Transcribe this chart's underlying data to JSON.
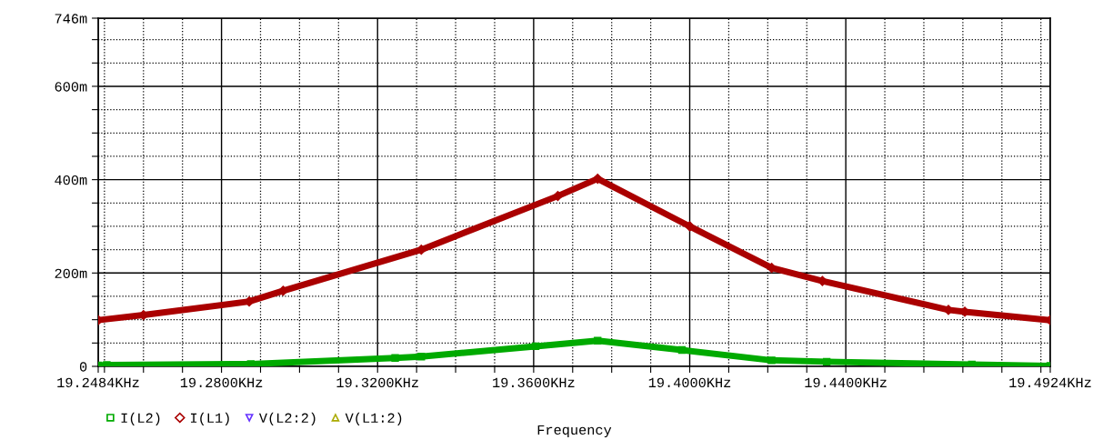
{
  "chart_data": {
    "type": "line",
    "xlabel": "Frequency",
    "legend": "bottom",
    "grid": true,
    "line_style": "solid",
    "xlim": [
      19.2484,
      19.4924
    ],
    "ylim": [
      0,
      746
    ],
    "xticks": [
      {
        "value": 19.2484,
        "label": "19.2484KHz"
      },
      {
        "value": 19.25,
        "label": null
      },
      {
        "value": 19.26,
        "label": null
      },
      {
        "value": 19.27,
        "label": null
      },
      {
        "value": 19.28,
        "label": "19.2800KHz"
      },
      {
        "value": 19.29,
        "label": null
      },
      {
        "value": 19.3,
        "label": null
      },
      {
        "value": 19.31,
        "label": null
      },
      {
        "value": 19.32,
        "label": "19.3200KHz"
      },
      {
        "value": 19.33,
        "label": null
      },
      {
        "value": 19.34,
        "label": null
      },
      {
        "value": 19.35,
        "label": null
      },
      {
        "value": 19.36,
        "label": "19.3600KHz"
      },
      {
        "value": 19.37,
        "label": null
      },
      {
        "value": 19.38,
        "label": null
      },
      {
        "value": 19.39,
        "label": null
      },
      {
        "value": 19.4,
        "label": "19.4000KHz"
      },
      {
        "value": 19.41,
        "label": null
      },
      {
        "value": 19.42,
        "label": null
      },
      {
        "value": 19.43,
        "label": null
      },
      {
        "value": 19.44,
        "label": "19.4400KHz"
      },
      {
        "value": 19.45,
        "label": null
      },
      {
        "value": 19.46,
        "label": null
      },
      {
        "value": 19.47,
        "label": null
      },
      {
        "value": 19.48,
        "label": null
      },
      {
        "value": 19.49,
        "label": null
      },
      {
        "value": 19.4924,
        "label": "19.4924KHz"
      }
    ],
    "yticks": [
      0,
      {
        "value": 50,
        "label": null
      },
      {
        "value": 100,
        "label": null
      },
      {
        "value": 150,
        "label": null
      },
      {
        "value": 200,
        "label": "200m"
      },
      {
        "value": 250,
        "label": null
      },
      {
        "value": 300,
        "label": null
      },
      {
        "value": 350,
        "label": null
      },
      {
        "value": 400,
        "label": "400m"
      },
      {
        "value": 450,
        "label": null
      },
      {
        "value": 500,
        "label": null
      },
      {
        "value": 550,
        "label": null
      },
      {
        "value": 600,
        "label": "600m"
      },
      {
        "value": 650,
        "label": null
      },
      {
        "value": 700,
        "label": null
      },
      {
        "value": 746,
        "label": "746m"
      }
    ],
    "series": [
      {
        "name": "I(L2)",
        "color": "#00aa00",
        "marker": "square",
        "x": [
          19.2484,
          19.2506,
          19.2875,
          19.3245,
          19.3312,
          19.3605,
          19.3764,
          19.398,
          19.421,
          19.4351,
          19.4723,
          19.4924
        ],
        "values": [
          2,
          3,
          5,
          18,
          21,
          43,
          55,
          35,
          13,
          10,
          4,
          1
        ]
      },
      {
        "name": "I(L1)",
        "color": "#aa0000",
        "marker": "diamond",
        "x": [
          19.2484,
          19.26,
          19.2871,
          19.2958,
          19.3312,
          19.3662,
          19.3764,
          19.4,
          19.421,
          19.434,
          19.4663,
          19.4705,
          19.4924
        ],
        "values": [
          99,
          110,
          139,
          162,
          250,
          365,
          402,
          300,
          211,
          183,
          121,
          117,
          99
        ]
      },
      {
        "name": "V(L2:2)",
        "color": "#6633ff",
        "marker": "triangle_down"
      },
      {
        "name": "V(L1:2)",
        "color": "#aaaa00",
        "marker": "triangle"
      }
    ]
  }
}
